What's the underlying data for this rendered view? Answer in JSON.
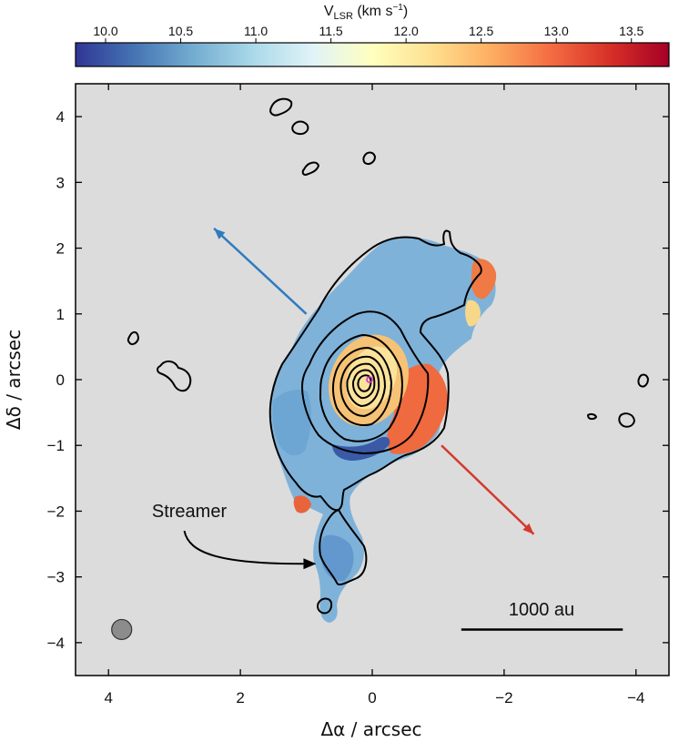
{
  "chart_data": {
    "type": "heatmap",
    "colorbar": {
      "label_main": "V",
      "label_sub": "LSR",
      "label_unit": " (km s",
      "label_exp": "−1",
      "label_close": ")",
      "range": [
        9.8,
        13.75
      ],
      "ticks": [
        10.0,
        10.5,
        11.0,
        11.5,
        12.0,
        12.5,
        13.0,
        13.5
      ],
      "tick_labels": [
        "10.0",
        "10.5",
        "11.0",
        "11.5",
        "12.0",
        "12.5",
        "13.0",
        "13.5"
      ],
      "colormap": "RdYlBu_r",
      "colors": [
        "#313695",
        "#4575b4",
        "#74add1",
        "#abd9e9",
        "#e0f3f8",
        "#ffffbf",
        "#fee090",
        "#fdae61",
        "#f46d43",
        "#d73027",
        "#a50026"
      ]
    },
    "xlabel": "Δα / arcsec",
    "ylabel": "Δδ / arcsec",
    "xlim": [
      4.5,
      -4.5
    ],
    "ylim": [
      -4.5,
      4.5
    ],
    "x_ticks": [
      4,
      2,
      0,
      -2,
      -4
    ],
    "x_tick_labels": [
      "4",
      "2",
      "0",
      "−2",
      "−4"
    ],
    "y_ticks": [
      4,
      3,
      2,
      1,
      0,
      -1,
      -2,
      -3,
      -4
    ],
    "y_tick_labels": [
      "4",
      "3",
      "2",
      "1",
      "0",
      "−1",
      "−2",
      "−3",
      "−4"
    ],
    "background_color": "#dcdcdc",
    "annotations": {
      "streamer_label": "Streamer",
      "scale_bar_label": "1000 au"
    },
    "outflow_arrows": [
      {
        "color": "#2f7bbf",
        "from": [
          1.0,
          1.0
        ],
        "to": [
          2.4,
          2.3
        ]
      },
      {
        "color": "#d33a2f",
        "from": [
          -1.05,
          -1.0
        ],
        "to": [
          -2.45,
          -2.35
        ]
      }
    ],
    "streamer_arrow": {
      "from": [
        2.85,
        -2.3
      ],
      "to": [
        0.85,
        -2.8
      ]
    },
    "scale_bar": {
      "from": [
        -1.35,
        -3.8
      ],
      "to": [
        -3.8,
        -3.8
      ]
    },
    "beam": {
      "x": 3.8,
      "y": -3.8,
      "radius": 0.15
    }
  }
}
